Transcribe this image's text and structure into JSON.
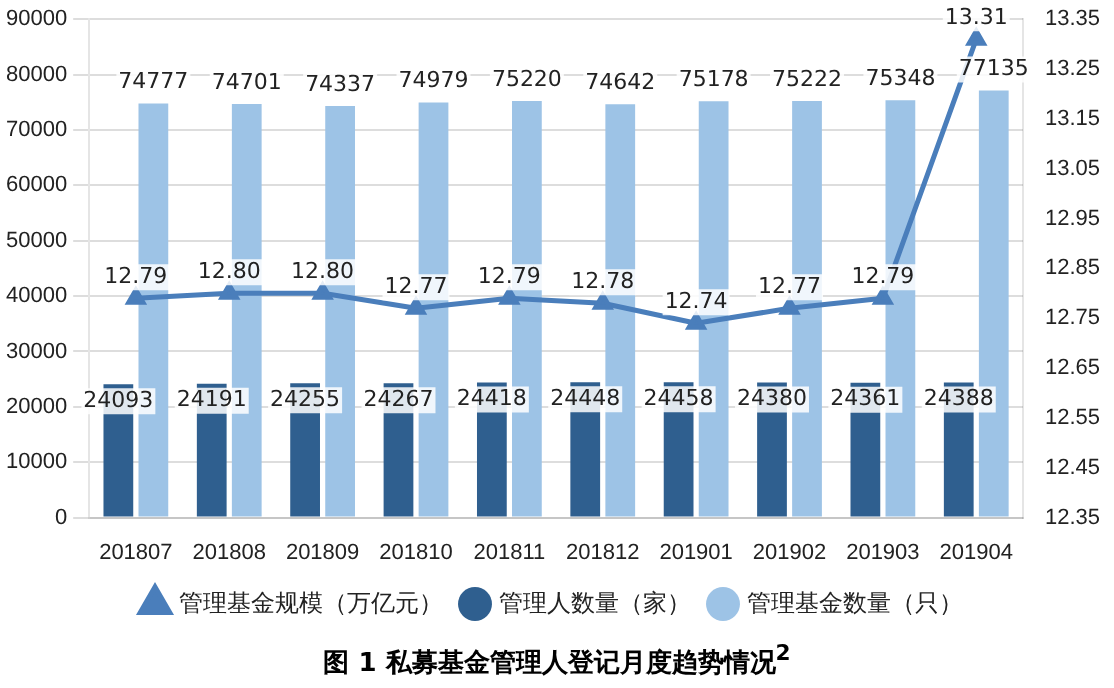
{
  "chart_data": {
    "type": "bar",
    "title": "图 1 私募基金管理人登记月度趋势情况$^{2}$",
    "categories": [
      "201807",
      "201808",
      "201809",
      "201810",
      "201811",
      "201812",
      "201901",
      "201902",
      "201903",
      "201904"
    ],
    "series": [
      {
        "name": "管理人数量（家）",
        "color": "#2f5f8f",
        "values": [
          24093,
          24191,
          24255,
          24267,
          24418,
          24448,
          24458,
          24380,
          24361,
          24388
        ]
      },
      {
        "name": "管理基金数量（只）",
        "color": "#9dc3e6",
        "values": [
          74777,
          74701,
          74337,
          74979,
          75220,
          74642,
          75178,
          75222,
          75348,
          77135
        ]
      },
      {
        "name": "管理基金规模（万亿元）",
        "type": "line",
        "axis": "y2",
        "color": "#4a7ebb",
        "marker": "triangle",
        "values": [
          12.79,
          12.8,
          12.8,
          12.77,
          12.79,
          12.78,
          12.74,
          12.77,
          12.79,
          13.31
        ],
        "value_labels": [
          "12.79",
          "12.80",
          "12.80",
          "12.77",
          "12.79",
          "12.78",
          "12.74",
          "12.77",
          "12.79",
          "13.31"
        ]
      }
    ],
    "ylim": [
      0,
      90000
    ],
    "yticks": [
      0,
      10000,
      20000,
      30000,
      40000,
      50000,
      60000,
      70000,
      80000,
      90000
    ],
    "y2lim": [
      12.35,
      13.35
    ],
    "y2ticks": [
      {
        "value": 12.35,
        "label": "12.35"
      },
      {
        "value": 12.45,
        "label": "12.45"
      },
      {
        "value": 12.55,
        "label": "12.55"
      },
      {
        "value": 12.65,
        "label": "12.65"
      },
      {
        "value": 12.75,
        "label": "12.75"
      },
      {
        "value": 12.85,
        "label": "12.85"
      },
      {
        "value": 12.95,
        "label": "12.95"
      },
      {
        "value": 13.05,
        "label": "13.05"
      },
      {
        "value": 13.15,
        "label": "13.15"
      },
      {
        "value": 13.25,
        "label": "13.25"
      },
      {
        "value": 13.35,
        "label": "13.35"
      }
    ],
    "grid": "y",
    "legend": "bottom",
    "data_labels": true
  }
}
